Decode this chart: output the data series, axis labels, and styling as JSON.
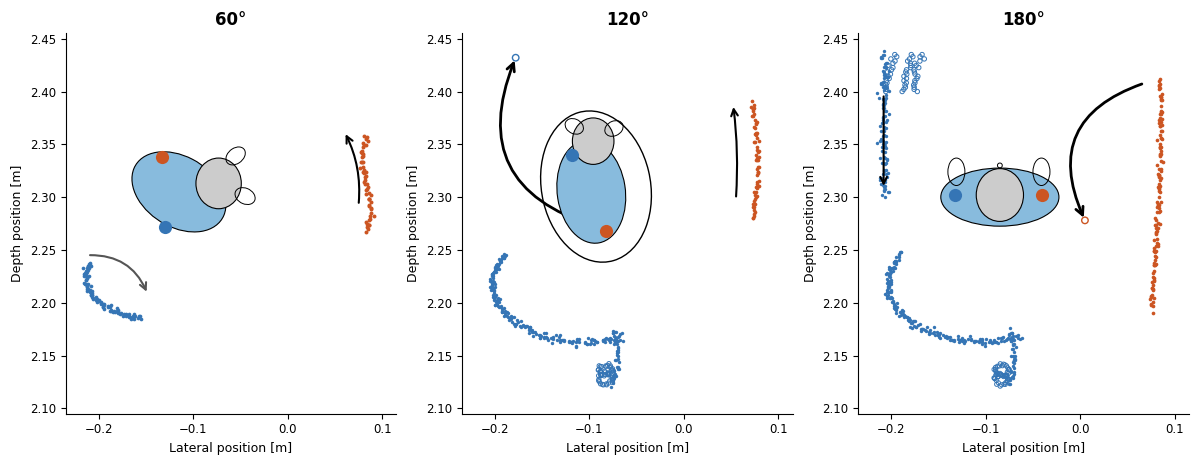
{
  "titles": [
    "60°",
    "120°",
    "180°"
  ],
  "xlim": [
    -0.235,
    0.115
  ],
  "ylim": [
    2.095,
    2.455
  ],
  "xlabel": "Lateral position [m]",
  "ylabel": "Depth position [m]",
  "xticks": [
    -0.2,
    -0.1,
    0,
    0.1
  ],
  "yticks": [
    2.1,
    2.15,
    2.2,
    2.25,
    2.3,
    2.35,
    2.4,
    2.45
  ],
  "blue_color": "#3575b5",
  "orange_color": "#cc5522",
  "light_blue": "#88bbdd",
  "gray_color": "#cccccc",
  "background": "#ffffff"
}
